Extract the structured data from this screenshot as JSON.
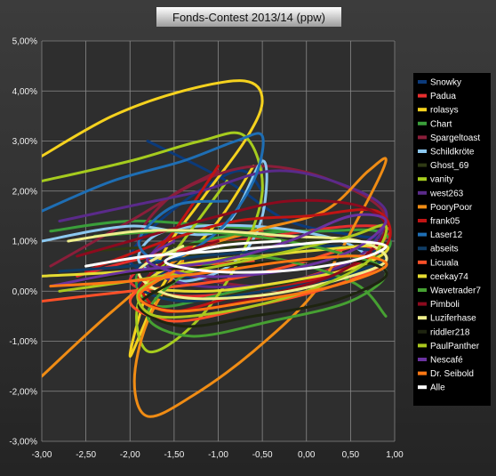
{
  "chart_data": {
    "type": "line",
    "title": "Fonds-Contest 2013/14 (ppw)",
    "xlabel": "",
    "ylabel": "",
    "xlim": [
      -3.0,
      1.0
    ],
    "ylim": [
      -0.03,
      0.05
    ],
    "x_ticks": [
      "-3,00",
      "-2,50",
      "-2,00",
      "-1,50",
      "-1,00",
      "-0,50",
      "0,00",
      "0,50",
      "1,00"
    ],
    "y_ticks": [
      "5,00%",
      "4,00%",
      "3,00%",
      "2,00%",
      "1,00%",
      "0,00%",
      "-1,00%",
      "-2,00%",
      "-3,00%"
    ],
    "grid": true,
    "legend_position": "right",
    "series": [
      {
        "name": "Snowky",
        "color": "#0b3a7a",
        "points": [
          [
            -1.8,
            0.03
          ],
          [
            -0.9,
            0.022
          ],
          [
            -0.2,
            0.014
          ],
          [
            0.6,
            0.011
          ],
          [
            0.95,
            0.01
          ],
          [
            0.4,
            0.004
          ],
          [
            -0.5,
            0.001
          ],
          [
            -1.4,
            0.003
          ],
          [
            -2.0,
            0.006
          ],
          [
            -1.6,
            0.015
          ],
          [
            -0.8,
            0.024
          ],
          [
            -0.5,
            0.02
          ]
        ]
      },
      {
        "name": "Padua",
        "color": "#e62e2e",
        "points": [
          [
            -2.6,
            0.003
          ],
          [
            -2.0,
            0.006
          ],
          [
            -1.2,
            0.009
          ],
          [
            -0.4,
            0.011
          ],
          [
            0.5,
            0.013
          ],
          [
            0.95,
            0.012
          ],
          [
            0.5,
            0.006
          ],
          [
            -0.4,
            0.001
          ],
          [
            -1.4,
            -0.001
          ],
          [
            -2.0,
            0.002
          ],
          [
            -1.5,
            0.008
          ],
          [
            -0.5,
            0.012
          ]
        ]
      },
      {
        "name": "rolasys",
        "color": "#f5d21e",
        "points": [
          [
            -3.0,
            0.027
          ],
          [
            -2.2,
            0.035
          ],
          [
            -1.4,
            0.04
          ],
          [
            -0.7,
            0.042
          ],
          [
            -0.5,
            0.038
          ],
          [
            -0.7,
            0.03
          ],
          [
            -1.2,
            0.018
          ],
          [
            -1.7,
            0.005
          ],
          [
            -2.0,
            -0.013
          ],
          [
            -1.6,
            0.002
          ],
          [
            -1.0,
            0.014
          ],
          [
            -0.6,
            0.025
          ]
        ]
      },
      {
        "name": "Chart",
        "color": "#3a9e3a",
        "points": [
          [
            -2.9,
            0.012
          ],
          [
            -2.0,
            0.014
          ],
          [
            -1.0,
            0.013
          ],
          [
            0.0,
            0.012
          ],
          [
            0.8,
            0.012
          ],
          [
            0.9,
            0.008
          ],
          [
            0.2,
            0.003
          ],
          [
            -0.8,
            0.0
          ],
          [
            -1.7,
            -0.003
          ],
          [
            -1.9,
            0.004
          ],
          [
            -1.2,
            0.01
          ],
          [
            -0.2,
            0.012
          ]
        ]
      },
      {
        "name": "Spargeltoast",
        "color": "#8a1e3a",
        "points": [
          [
            -2.9,
            0.005
          ],
          [
            -2.0,
            0.014
          ],
          [
            -1.2,
            0.022
          ],
          [
            -0.5,
            0.025
          ],
          [
            0.3,
            0.022
          ],
          [
            0.9,
            0.015
          ],
          [
            0.6,
            0.006
          ],
          [
            -0.3,
            0.001
          ],
          [
            -1.3,
            0.003
          ],
          [
            -1.9,
            0.009
          ],
          [
            -1.6,
            0.018
          ],
          [
            -1.0,
            0.024
          ]
        ]
      },
      {
        "name": "Schildkröte",
        "color": "#8cc8f0",
        "points": [
          [
            -3.0,
            0.01
          ],
          [
            -2.0,
            0.013
          ],
          [
            -1.0,
            0.012
          ],
          [
            -0.5,
            0.026
          ],
          [
            -0.5,
            0.015
          ],
          [
            -0.8,
            0.006
          ],
          [
            -1.4,
            0.002
          ],
          [
            -1.9,
            0.006
          ],
          [
            -1.6,
            0.012
          ],
          [
            -0.6,
            0.013
          ],
          [
            0.4,
            0.01
          ],
          [
            0.9,
            0.004
          ]
        ]
      },
      {
        "name": "Ghost_69",
        "color": "#2f3a14",
        "points": [
          [
            -2.5,
            0.008
          ],
          [
            -1.6,
            0.009
          ],
          [
            -0.6,
            0.01
          ],
          [
            0.4,
            0.01
          ],
          [
            0.9,
            0.008
          ],
          [
            0.5,
            0.004
          ],
          [
            -0.4,
            0.001
          ],
          [
            -1.3,
            -0.002
          ],
          [
            -1.8,
            0.001
          ],
          [
            -1.5,
            0.006
          ],
          [
            -0.8,
            0.009
          ]
        ]
      },
      {
        "name": "vanity",
        "color": "#a6cc1e",
        "points": [
          [
            -3.0,
            0.022
          ],
          [
            -2.0,
            0.026
          ],
          [
            -1.2,
            0.03
          ],
          [
            -0.7,
            0.031
          ],
          [
            -0.5,
            0.02
          ],
          [
            -0.8,
            0.005
          ],
          [
            -1.3,
            -0.007
          ],
          [
            -1.8,
            -0.012
          ],
          [
            -1.9,
            -0.002
          ],
          [
            -1.4,
            0.01
          ],
          [
            -0.9,
            0.022
          ]
        ]
      },
      {
        "name": "west263",
        "color": "#5a2a8a",
        "points": [
          [
            -2.8,
            0.014
          ],
          [
            -2.0,
            0.017
          ],
          [
            -1.2,
            0.02
          ],
          [
            -0.4,
            0.024
          ],
          [
            0.3,
            0.022
          ],
          [
            0.9,
            0.016
          ],
          [
            0.6,
            0.007
          ],
          [
            -0.2,
            0.002
          ],
          [
            -1.2,
            0.001
          ],
          [
            -1.8,
            0.005
          ],
          [
            -1.5,
            0.012
          ]
        ]
      },
      {
        "name": "PooryPoor",
        "color": "#f08c14",
        "points": [
          [
            -3.0,
            -0.017
          ],
          [
            -2.2,
            -0.004
          ],
          [
            -1.4,
            0.007
          ],
          [
            -0.6,
            0.012
          ],
          [
            0.2,
            0.016
          ],
          [
            0.7,
            0.024
          ],
          [
            0.9,
            0.026
          ],
          [
            0.6,
            0.015
          ],
          [
            0.1,
            0.0
          ],
          [
            -0.6,
            -0.012
          ],
          [
            -1.3,
            -0.021
          ],
          [
            -1.8,
            -0.025
          ],
          [
            -1.95,
            -0.018
          ],
          [
            -1.8,
            -0.006
          ],
          [
            -1.4,
            0.006
          ]
        ]
      },
      {
        "name": "frank05",
        "color": "#c01414",
        "points": [
          [
            -2.5,
            0.004
          ],
          [
            -1.6,
            0.01
          ],
          [
            -0.8,
            0.014
          ],
          [
            0.0,
            0.015
          ],
          [
            0.8,
            0.016
          ],
          [
            0.9,
            0.009
          ],
          [
            0.2,
            0.003
          ],
          [
            -0.8,
            -0.001
          ],
          [
            -1.6,
            -0.004
          ],
          [
            -1.9,
            0.003
          ],
          [
            -1.5,
            0.012
          ],
          [
            -1.0,
            0.025
          ]
        ]
      },
      {
        "name": "Laser12",
        "color": "#1e6eb4",
        "points": [
          [
            -3.0,
            0.016
          ],
          [
            -2.2,
            0.022
          ],
          [
            -1.4,
            0.026
          ],
          [
            -0.8,
            0.03
          ],
          [
            -0.5,
            0.031
          ],
          [
            -0.6,
            0.022
          ],
          [
            -1.0,
            0.012
          ],
          [
            -1.6,
            0.006
          ],
          [
            -1.9,
            0.01
          ],
          [
            -1.5,
            0.017
          ],
          [
            -0.9,
            0.018
          ]
        ]
      },
      {
        "name": "abseits",
        "color": "#103c64",
        "points": [
          [
            -2.8,
            0.004
          ],
          [
            -2.0,
            0.005
          ],
          [
            -1.2,
            0.007
          ],
          [
            -0.5,
            0.008
          ],
          [
            0.3,
            0.009
          ],
          [
            0.9,
            0.007
          ],
          [
            0.4,
            0.003
          ],
          [
            -0.5,
            0.0
          ],
          [
            -1.4,
            -0.002
          ],
          [
            -1.9,
            0.001
          ],
          [
            -1.5,
            0.005
          ]
        ]
      },
      {
        "name": "Licuala",
        "color": "#ff5028",
        "points": [
          [
            -3.0,
            -0.002
          ],
          [
            -2.0,
            0.0
          ],
          [
            -1.0,
            0.002
          ],
          [
            -0.2,
            0.005
          ],
          [
            0.6,
            0.009
          ],
          [
            0.9,
            0.006
          ],
          [
            0.3,
            0.001
          ],
          [
            -0.6,
            -0.003
          ],
          [
            -1.5,
            -0.006
          ],
          [
            -2.0,
            -0.002
          ],
          [
            -1.5,
            0.004
          ],
          [
            -0.6,
            0.006
          ]
        ]
      },
      {
        "name": "ceekay74",
        "color": "#e6dc32",
        "points": [
          [
            -3.0,
            0.003
          ],
          [
            -2.0,
            0.004
          ],
          [
            -1.0,
            0.006
          ],
          [
            0.0,
            0.008
          ],
          [
            0.9,
            0.009
          ],
          [
            0.6,
            0.005
          ],
          [
            -0.2,
            0.002
          ],
          [
            -1.1,
            0.0
          ],
          [
            -1.8,
            0.001
          ],
          [
            -1.5,
            0.005
          ],
          [
            -0.7,
            0.007
          ]
        ]
      },
      {
        "name": "Wavetrader7",
        "color": "#46a032",
        "points": [
          [
            -2.4,
            0.011
          ],
          [
            -1.5,
            0.012
          ],
          [
            -0.6,
            0.011
          ],
          [
            0.3,
            0.008
          ],
          [
            0.9,
            0.004
          ],
          [
            0.5,
            -0.002
          ],
          [
            -0.4,
            -0.006
          ],
          [
            -1.3,
            -0.009
          ],
          [
            -1.8,
            -0.005
          ],
          [
            -1.4,
            0.003
          ],
          [
            -0.6,
            0.007
          ],
          [
            0.5,
            0.002
          ],
          [
            0.9,
            -0.005
          ]
        ]
      },
      {
        "name": "Pimboli",
        "color": "#8c0a1e",
        "points": [
          [
            -2.6,
            0.007
          ],
          [
            -1.8,
            0.011
          ],
          [
            -1.0,
            0.015
          ],
          [
            -0.2,
            0.018
          ],
          [
            0.6,
            0.017
          ],
          [
            0.9,
            0.012
          ],
          [
            0.4,
            0.004
          ],
          [
            -0.5,
            -0.001
          ],
          [
            -1.4,
            -0.004
          ],
          [
            -1.9,
            -0.001
          ],
          [
            -1.6,
            0.006
          ],
          [
            -1.0,
            0.01
          ]
        ]
      },
      {
        "name": "Luziferhase",
        "color": "#eeee8c",
        "points": [
          [
            -2.7,
            0.01
          ],
          [
            -1.9,
            0.012
          ],
          [
            -1.0,
            0.012
          ],
          [
            -0.2,
            0.011
          ],
          [
            0.6,
            0.01
          ],
          [
            0.9,
            0.006
          ],
          [
            0.3,
            0.002
          ],
          [
            -0.6,
            -0.001
          ],
          [
            -1.5,
            -0.001
          ],
          [
            -1.9,
            0.004
          ],
          [
            -1.4,
            0.009
          ]
        ]
      },
      {
        "name": "riddler218",
        "color": "#1e2410",
        "points": [
          [
            -2.6,
            0.002
          ],
          [
            -1.8,
            0.004
          ],
          [
            -1.0,
            0.005
          ],
          [
            -0.2,
            0.006
          ],
          [
            0.6,
            0.006
          ],
          [
            0.9,
            0.003
          ],
          [
            0.3,
            -0.002
          ],
          [
            -0.6,
            -0.005
          ],
          [
            -1.4,
            -0.007
          ],
          [
            -1.9,
            -0.003
          ],
          [
            -1.5,
            0.002
          ]
        ]
      },
      {
        "name": "PaulPanther",
        "color": "#aac81e",
        "points": [
          [
            -2.8,
            0.0
          ],
          [
            -2.0,
            0.002
          ],
          [
            -1.0,
            0.005
          ],
          [
            -0.2,
            0.008
          ],
          [
            0.5,
            0.011
          ],
          [
            0.9,
            0.013
          ],
          [
            0.7,
            0.006
          ],
          [
            0.0,
            0.0
          ],
          [
            -0.9,
            -0.004
          ],
          [
            -1.7,
            -0.005
          ],
          [
            -1.9,
            0.0
          ],
          [
            -1.4,
            0.004
          ]
        ]
      },
      {
        "name": "Nescafé",
        "color": "#6a32a0",
        "points": [
          [
            -2.9,
            0.001
          ],
          [
            -2.0,
            0.004
          ],
          [
            -1.0,
            0.006
          ],
          [
            -0.2,
            0.01
          ],
          [
            0.5,
            0.015
          ],
          [
            0.9,
            0.014
          ],
          [
            0.5,
            0.008
          ],
          [
            -0.3,
            0.004
          ],
          [
            -1.2,
            0.003
          ],
          [
            -1.8,
            0.006
          ],
          [
            -1.5,
            0.01
          ]
        ]
      },
      {
        "name": "Dr. Seibold",
        "color": "#ff7814",
        "points": [
          [
            -2.9,
            0.001
          ],
          [
            -2.0,
            0.002
          ],
          [
            -1.0,
            0.004
          ],
          [
            -0.2,
            0.006
          ],
          [
            0.6,
            0.007
          ],
          [
            0.9,
            0.005
          ],
          [
            0.3,
            0.001
          ],
          [
            -0.6,
            -0.002
          ],
          [
            -1.5,
            -0.004
          ],
          [
            -1.9,
            -0.001
          ],
          [
            -1.5,
            0.004
          ]
        ]
      },
      {
        "name": "Alle",
        "color": "#ffffff",
        "points": [
          [
            -2.5,
            0.005
          ],
          [
            -1.8,
            0.007
          ],
          [
            -1.0,
            0.008
          ],
          [
            -0.3,
            0.009
          ],
          [
            0.4,
            0.01
          ],
          [
            0.9,
            0.009
          ],
          [
            0.5,
            0.006
          ],
          [
            -0.3,
            0.004
          ],
          [
            -1.1,
            0.004
          ],
          [
            -1.6,
            0.006
          ],
          [
            -1.0,
            0.009
          ],
          [
            -0.3,
            0.01
          ]
        ]
      }
    ]
  }
}
